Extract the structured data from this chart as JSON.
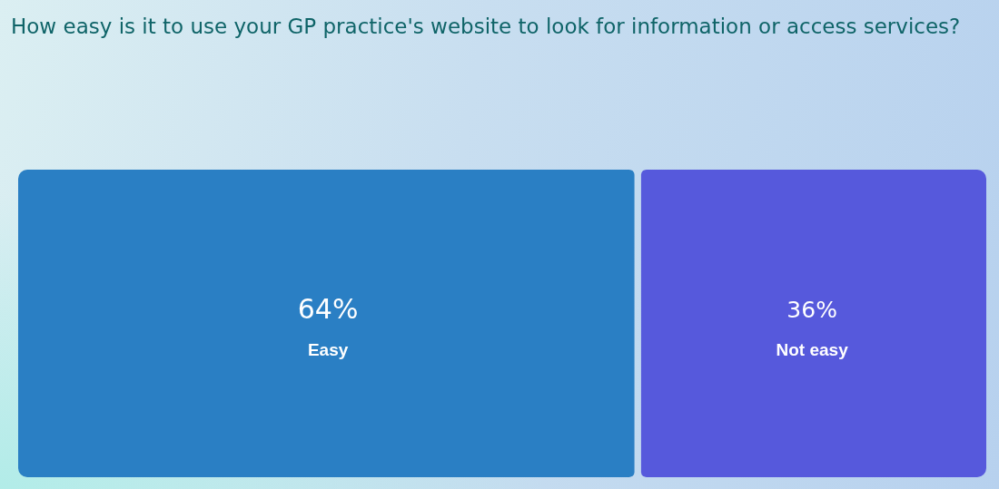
{
  "chart_data": {
    "type": "other",
    "title": "How easy is it to use your GP practice's website to look for information or access services?",
    "categories": [
      "Easy",
      "Not easy"
    ],
    "values": [
      64,
      36
    ],
    "value_labels": [
      "64%",
      "36%"
    ],
    "colors": [
      "#2a7fc4",
      "#5659dc"
    ]
  }
}
